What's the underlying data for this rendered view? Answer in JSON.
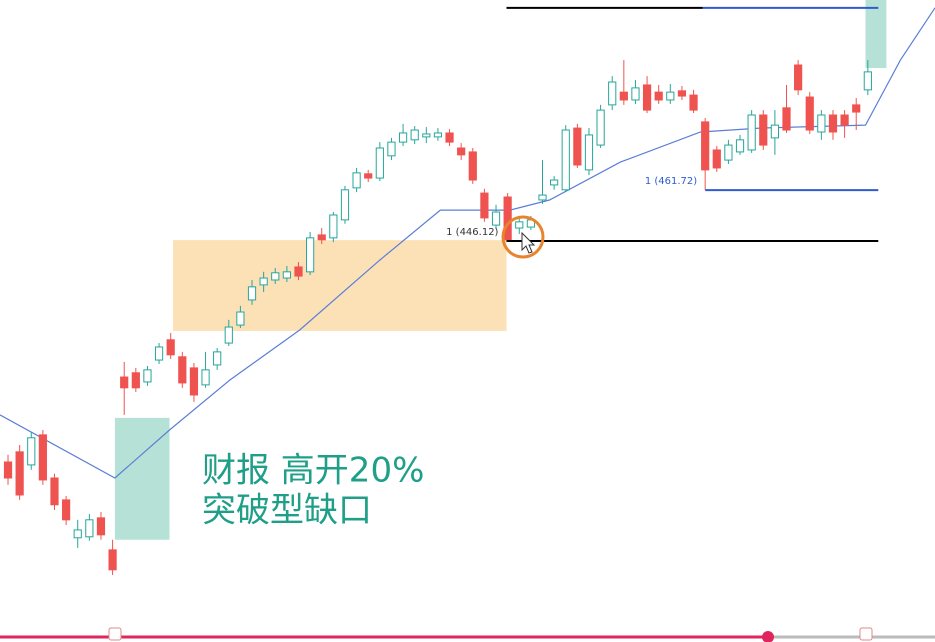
{
  "chart_data": {
    "type": "candlestick",
    "xlim": [
      -0.69,
      79.78
    ],
    "ylim": [
      323.4,
      519.9
    ],
    "up_color": "#26a69a",
    "down_color": "#ef5350",
    "open": [
      378.5,
      381.6,
      377.6,
      386.8,
      373.6,
      366.9,
      355.3,
      355.6,
      361.4,
      351.6,
      404.5,
      405.8,
      403.0,
      409.7,
      415.9,
      410.7,
      407.3,
      402.1,
      408.2,
      414.9,
      420.4,
      428.1,
      432.7,
      434.2,
      434.8,
      438.2,
      436.7,
      448.0,
      447.1,
      452.6,
      462.4,
      466.7,
      465.4,
      472.2,
      476.4,
      477.1,
      478.0,
      478.0,
      479.2,
      474.6,
      473.4,
      460.8,
      451.0,
      459.6,
      450.1,
      450.4,
      458.7,
      463.3,
      461.8,
      480.7,
      467.9,
      475.5,
      487.8,
      491.7,
      489.3,
      493.9,
      491.7,
      489.3,
      492.1,
      490.8,
      482.6,
      474.0,
      470.9,
      473.4,
      474.0,
      484.7,
      477.7,
      486.9,
      500.0,
      490.2,
      479.5,
      484.7,
      484.7,
      487.8,
      492.4
    ],
    "high": [
      380.7,
      383.7,
      387.7,
      388.3,
      374.9,
      368.1,
      360.8,
      362.6,
      363.2,
      354.7,
      409.1,
      407.3,
      407.9,
      414.9,
      418.0,
      412.2,
      408.8,
      412.2,
      413.4,
      422.0,
      426.3,
      434.2,
      436.7,
      437.9,
      438.5,
      439.7,
      448.9,
      450.1,
      455.0,
      463.0,
      468.5,
      467.9,
      476.4,
      477.7,
      482.0,
      481.3,
      481.0,
      480.7,
      480.4,
      476.1,
      474.6,
      462.1,
      457.2,
      460.8,
      453.2,
      453.8,
      470.9,
      466.0,
      481.6,
      482.0,
      480.7,
      487.8,
      496.6,
      501.5,
      495.4,
      496.6,
      493.9,
      494.2,
      493.6,
      492.4,
      483.8,
      475.2,
      477.1,
      478.6,
      486.2,
      486.2,
      486.2,
      493.9,
      501.5,
      491.7,
      486.2,
      486.2,
      486.2,
      489.9,
      501.5
    ],
    "low": [
      371.5,
      366.9,
      376.1,
      371.5,
      363.8,
      359.2,
      352.2,
      354.4,
      354.7,
      343.9,
      392.9,
      399.9,
      401.8,
      408.5,
      410.0,
      401.2,
      396.9,
      401.2,
      406.7,
      414.0,
      419.5,
      426.6,
      430.5,
      433.0,
      433.6,
      434.2,
      435.7,
      445.2,
      445.8,
      451.4,
      461.1,
      464.2,
      464.5,
      470.9,
      475.2,
      475.8,
      476.1,
      476.8,
      475.2,
      470.9,
      463.6,
      452.0,
      449.8,
      446.1,
      448.3,
      449.5,
      457.5,
      461.8,
      461.1,
      468.5,
      466.3,
      474.6,
      486.2,
      487.8,
      488.1,
      485.3,
      488.1,
      488.1,
      489.3,
      485.3,
      461.8,
      467.3,
      469.7,
      472.5,
      473.1,
      474.0,
      472.5,
      479.2,
      490.8,
      478.9,
      477.1,
      477.1,
      477.7,
      480.1,
      490.8
    ],
    "close": [
      373.6,
      368.4,
      385.9,
      373.0,
      365.4,
      360.8,
      357.7,
      360.8,
      356.2,
      345.5,
      401.2,
      401.2,
      406.7,
      413.7,
      411.3,
      402.7,
      399.0,
      406.7,
      412.2,
      419.8,
      424.4,
      432.1,
      434.8,
      436.4,
      436.7,
      435.4,
      447.1,
      446.5,
      454.1,
      461.8,
      467.0,
      465.4,
      474.6,
      476.4,
      479.2,
      480.1,
      478.9,
      479.2,
      476.4,
      472.5,
      464.8,
      453.2,
      455.0,
      446.5,
      452.0,
      452.6,
      460.2,
      464.8,
      480.1,
      469.4,
      478.6,
      486.2,
      494.8,
      489.3,
      493.0,
      486.2,
      489.3,
      491.7,
      490.5,
      486.2,
      467.9,
      468.5,
      475.5,
      477.1,
      484.7,
      475.5,
      481.6,
      480.1,
      492.4,
      480.1,
      484.7,
      479.5,
      481.6,
      485.6,
      497.9
    ],
    "ma": {
      "color": "#5b7fd6",
      "x": [
        -0.69,
        9.2,
        13.9,
        19.1,
        25.1,
        32.0,
        37.2,
        43.2,
        46.6,
        52.7,
        59.6,
        64.7,
        73.8,
        76.8,
        79.78
      ],
      "values": [
        392.9,
        373.6,
        388.3,
        403.6,
        418.9,
        440.3,
        455.6,
        455.6,
        458.7,
        470.3,
        479.5,
        480.7,
        481.6,
        501.5,
        517.5
      ]
    },
    "zones": [
      {
        "color": "#fcdcaa",
        "x": [
          14.2,
          42.9
        ],
        "y": [
          418.6,
          446.4
        ]
      },
      {
        "color": "#a8dcd0",
        "x": [
          9.2,
          13.9
        ],
        "y": [
          354.7,
          392.0
        ]
      },
      {
        "color": "#a8dcd0",
        "x": [
          73.8,
          75.6
        ],
        "y": [
          499.1,
          519.9
        ]
      }
    ],
    "levels": [
      {
        "label": "1 (446.12)",
        "value": 446.12,
        "x": [
          42.9,
          74.9
        ],
        "color": "#000000"
      },
      {
        "label": "1 (461.72)",
        "value": 461.72,
        "x": [
          60.0,
          74.9
        ],
        "color": "#2e5bd0"
      },
      {
        "value": 517.5,
        "x": [
          42.9,
          59.8
        ],
        "color": "#000000"
      },
      {
        "value": 517.5,
        "x": [
          59.8,
          74.9
        ],
        "color": "#2e5bd0"
      }
    ],
    "annotation": [
      "财报 高开20%",
      "突破型缺口"
    ],
    "annotation_color": "#1f9f88"
  }
}
